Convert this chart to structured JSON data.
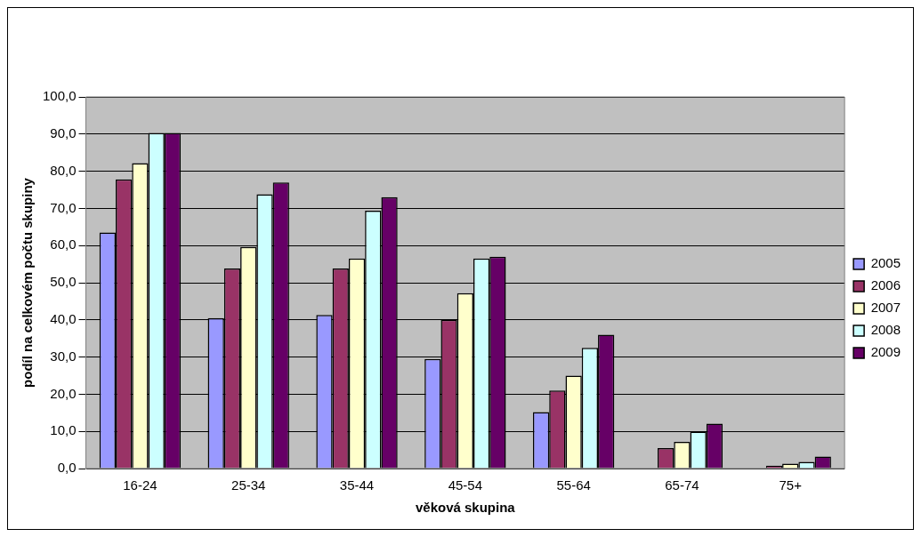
{
  "chart_data": {
    "type": "bar",
    "xlabel": "věková skupina",
    "ylabel": "podíl na celkovém počtu skupiny",
    "categories": [
      "16-24",
      "25-34",
      "35-44",
      "45-54",
      "55-64",
      "65-74",
      "75+"
    ],
    "series": [
      {
        "name": "2005",
        "color": "#9999ff",
        "values": [
          63.5,
          40.5,
          41.3,
          29.5,
          15.2,
          null,
          null
        ]
      },
      {
        "name": "2006",
        "color": "#993366",
        "values": [
          77.8,
          53.8,
          53.8,
          40.0,
          21.0,
          5.5,
          0.8
        ]
      },
      {
        "name": "2007",
        "color": "#ffffcc",
        "values": [
          82.2,
          59.6,
          56.5,
          47.2,
          25.0,
          7.2,
          1.3
        ]
      },
      {
        "name": "2008",
        "color": "#ccffff",
        "values": [
          90.3,
          73.8,
          69.4,
          56.5,
          32.5,
          9.9,
          1.8
        ]
      },
      {
        "name": "2009",
        "color": "#660066",
        "values": [
          90.3,
          77.0,
          73.0,
          57.0,
          36.0,
          12.1,
          3.2
        ]
      }
    ],
    "ylim": [
      0,
      100
    ],
    "yticks": [
      {
        "value": 0,
        "label": "0,0"
      },
      {
        "value": 10,
        "label": "10,0"
      },
      {
        "value": 20,
        "label": "20,0"
      },
      {
        "value": 30,
        "label": "30,0"
      },
      {
        "value": 40,
        "label": "40,0"
      },
      {
        "value": 50,
        "label": "50,0"
      },
      {
        "value": 60,
        "label": "60,0"
      },
      {
        "value": 70,
        "label": "70,0"
      },
      {
        "value": 80,
        "label": "80,0"
      },
      {
        "value": 90,
        "label": "90,0"
      },
      {
        "value": 100,
        "label": "100,0"
      }
    ],
    "grid": "y",
    "legend": "right"
  }
}
